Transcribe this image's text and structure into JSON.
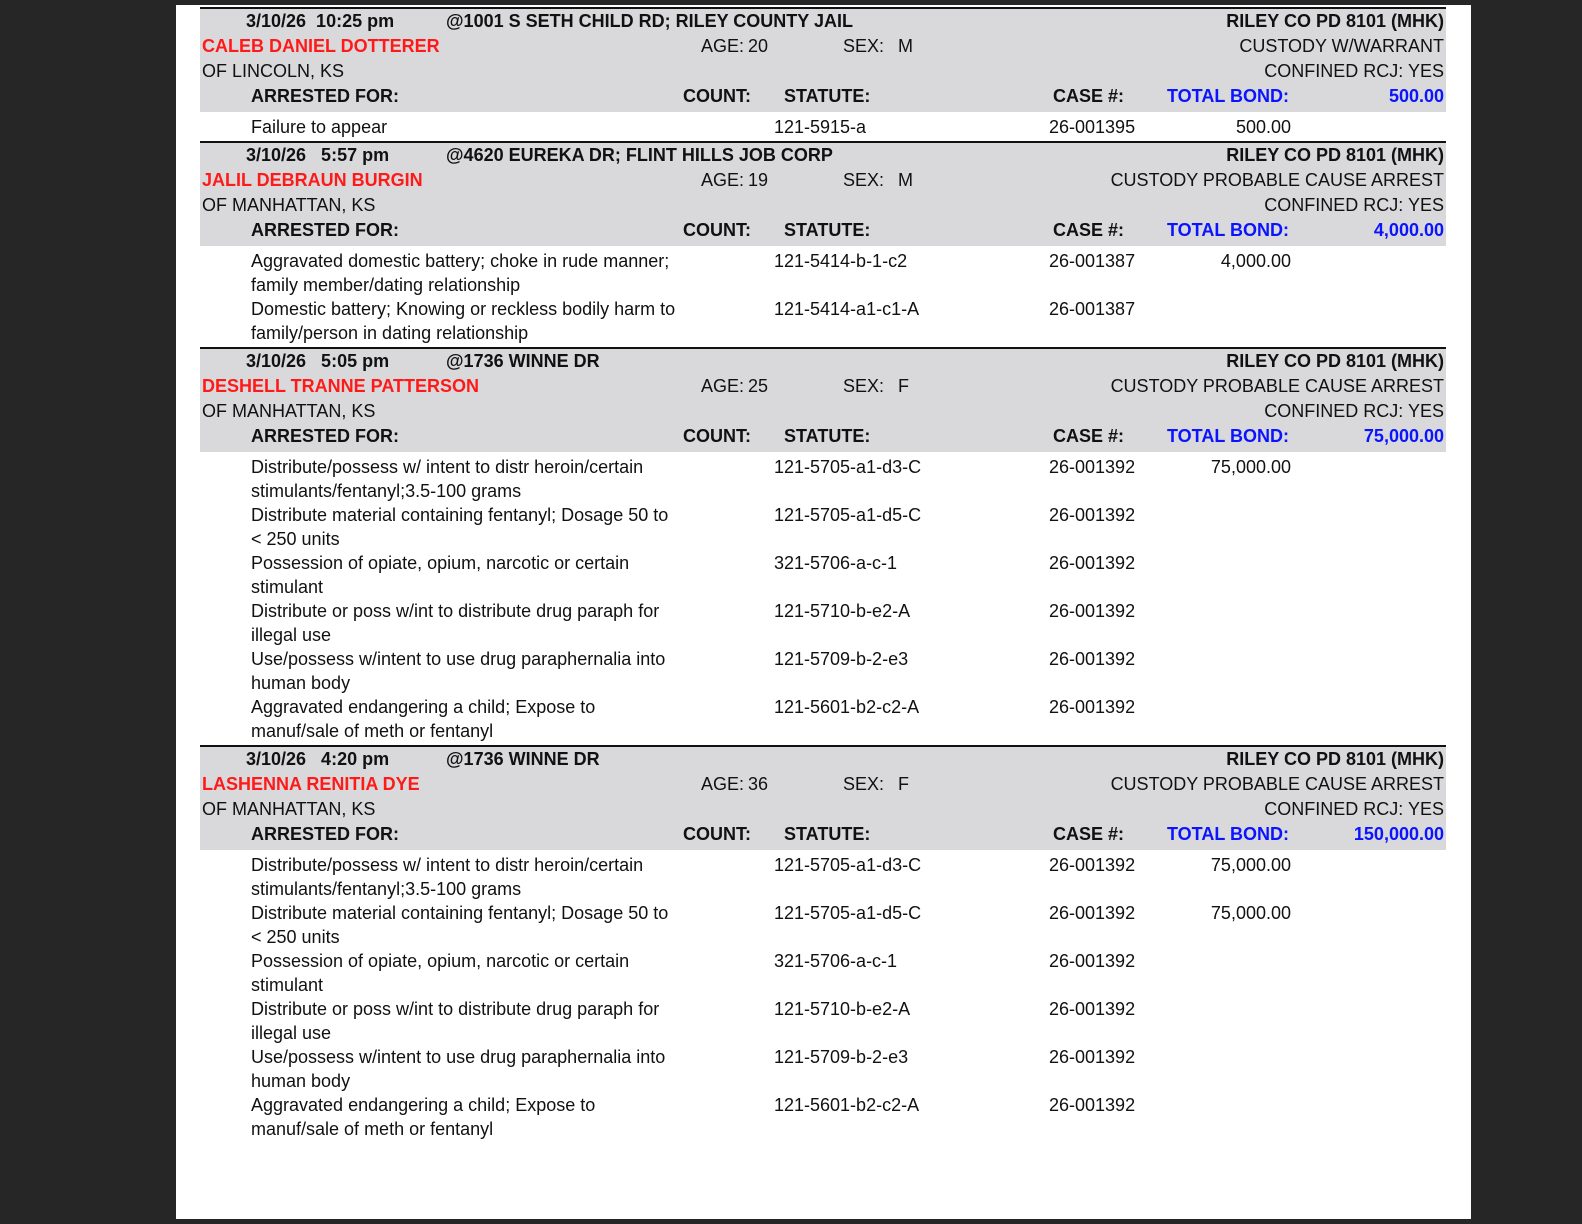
{
  "colors": {
    "name": "#ff1a1a",
    "bond": "#0a14ff",
    "band": "#d9d9db",
    "viewer_background": "#262626"
  },
  "labels": {
    "arrested_for": "ARRESTED FOR:",
    "count": "COUNT:",
    "statute": "STATUTE:",
    "case": "CASE #:",
    "total_bond": "TOTAL BOND:",
    "age": "AGE:",
    "sex": "SEX:"
  },
  "records": [
    {
      "datetime": "3/10/26  10:25 pm",
      "location": "@1001 S SETH CHILD RD; RILEY COUNTY JAIL",
      "agency": "RILEY CO PD 8101 (MHK)",
      "name": "CALEB DANIEL DOTTERER",
      "age": "20",
      "sex": "M",
      "custody": "CUSTODY W/WARRANT",
      "residence": "OF LINCOLN, KS",
      "confined": "CONFINED RCJ: YES",
      "total_bond": "500.00",
      "charges": [
        {
          "desc": "Failure to appear",
          "count": "1",
          "statute": "21-5915-a",
          "case": "26-001395",
          "bond": "500.00"
        }
      ]
    },
    {
      "datetime": "3/10/26   5:57 pm",
      "location": "@4620 EUREKA DR; FLINT HILLS JOB CORP",
      "agency": "RILEY CO PD 8101 (MHK)",
      "name": "JALIL DEBRAUN BURGIN",
      "age": "19",
      "sex": "M",
      "custody": "CUSTODY PROBABLE CAUSE ARREST",
      "residence": "OF MANHATTAN, KS",
      "confined": "CONFINED RCJ: YES",
      "total_bond": "4,000.00",
      "charges": [
        {
          "desc": "Aggravated domestic battery; choke in rude manner; family member/dating relationship",
          "count": "1",
          "statute": "21-5414-b-1-c2",
          "case": "26-001387",
          "bond": "4,000.00"
        },
        {
          "desc": "Domestic battery; Knowing or reckless bodily harm to family/person in dating relationship",
          "count": "1",
          "statute": "21-5414-a1-c1-A",
          "case": "26-001387",
          "bond": ""
        }
      ]
    },
    {
      "datetime": "3/10/26   5:05 pm",
      "location": "@1736 WINNE DR",
      "agency": "RILEY CO PD 8101 (MHK)",
      "name": "DESHELL TRANNE PATTERSON",
      "age": "25",
      "sex": "F",
      "custody": "CUSTODY PROBABLE CAUSE ARREST",
      "residence": "OF MANHATTAN, KS",
      "confined": "CONFINED RCJ: YES",
      "total_bond": "75,000.00",
      "charges": [
        {
          "desc": "Distribute/possess w/ intent to distr heroin/certain stimulants/fentanyl;3.5-100 grams",
          "count": "1",
          "statute": "21-5705-a1-d3-C",
          "case": "26-001392",
          "bond": "75,000.00"
        },
        {
          "desc": "Distribute material containing fentanyl; Dosage 50 to < 250 units",
          "count": "1",
          "statute": "21-5705-a1-d5-C",
          "case": "26-001392",
          "bond": ""
        },
        {
          "desc": "Possession of opiate, opium, narcotic or certain stimulant",
          "count": "3",
          "statute": "21-5706-a-c-1",
          "case": "26-001392",
          "bond": ""
        },
        {
          "desc": "Distribute or poss w/int to distribute drug paraph for illegal use",
          "count": "1",
          "statute": "21-5710-b-e2-A",
          "case": "26-001392",
          "bond": ""
        },
        {
          "desc": "Use/possess w/intent to use drug paraphernalia into human body",
          "count": "1",
          "statute": "21-5709-b-2-e3",
          "case": "26-001392",
          "bond": ""
        },
        {
          "desc": "Aggravated endangering a child; Expose to manuf/sale of meth or fentanyl",
          "count": "1",
          "statute": "21-5601-b2-c2-A",
          "case": "26-001392",
          "bond": ""
        }
      ]
    },
    {
      "datetime": "3/10/26   4:20 pm",
      "location": "@1736 WINNE DR",
      "agency": "RILEY CO PD 8101 (MHK)",
      "name": "LASHENNA RENITIA DYE",
      "age": "36",
      "sex": "F",
      "custody": "CUSTODY PROBABLE CAUSE ARREST",
      "residence": "OF MANHATTAN, KS",
      "confined": "CONFINED RCJ: YES",
      "total_bond": "150,000.00",
      "charges": [
        {
          "desc": "Distribute/possess w/ intent to distr heroin/certain stimulants/fentanyl;3.5-100 grams",
          "count": "1",
          "statute": "21-5705-a1-d3-C",
          "case": "26-001392",
          "bond": "75,000.00"
        },
        {
          "desc": "Distribute material containing fentanyl; Dosage 50 to < 250 units",
          "count": "1",
          "statute": "21-5705-a1-d5-C",
          "case": "26-001392",
          "bond": "75,000.00"
        },
        {
          "desc": "Possession of opiate, opium, narcotic or certain stimulant",
          "count": "3",
          "statute": "21-5706-a-c-1",
          "case": "26-001392",
          "bond": ""
        },
        {
          "desc": "Distribute or poss w/int to distribute drug paraph for illegal use",
          "count": "1",
          "statute": "21-5710-b-e2-A",
          "case": "26-001392",
          "bond": ""
        },
        {
          "desc": "Use/possess w/intent to use drug paraphernalia into human body",
          "count": "1",
          "statute": "21-5709-b-2-e3",
          "case": "26-001392",
          "bond": ""
        },
        {
          "desc": "Aggravated endangering a child; Expose to manuf/sale of meth or fentanyl",
          "count": "1",
          "statute": "21-5601-b2-c2-A",
          "case": "26-001392",
          "bond": ""
        }
      ]
    }
  ]
}
